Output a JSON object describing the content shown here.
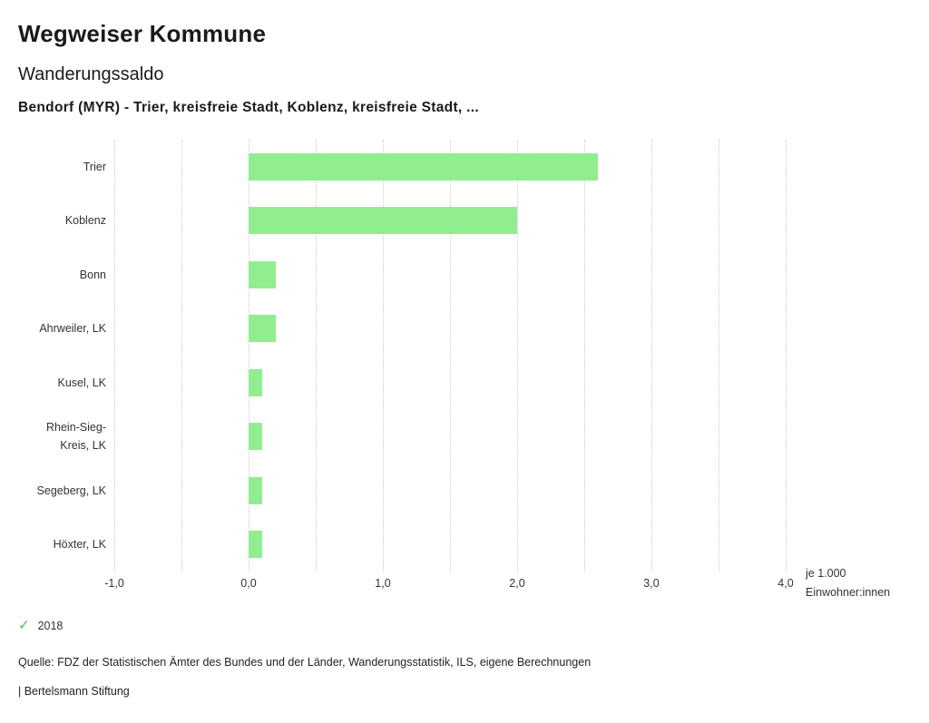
{
  "header": {
    "title": "Wegweiser Kommune",
    "subtitle": "Wanderungssaldo",
    "description": "Bendorf (MYR) - Trier, kreisfreie Stadt, Koblenz, kreisfreie Stadt, ..."
  },
  "chart_data": {
    "type": "bar",
    "orientation": "horizontal",
    "categories": [
      "Trier",
      "Koblenz",
      "Bonn",
      "Ahrweiler, LK",
      "Kusel, LK",
      "Rhein-Sieg-Kreis, LK",
      "Segeberg, LK",
      "Höxter, LK"
    ],
    "values": [
      2.6,
      2.0,
      0.2,
      0.2,
      0.1,
      0.1,
      0.1,
      0.1
    ],
    "series_name": "2018",
    "xlim": [
      -1.0,
      4.0
    ],
    "gridline_step": 0.5,
    "x_ticks": [
      -1,
      0,
      1,
      2,
      3,
      4
    ],
    "x_tick_labels": [
      "-1,0",
      "0,0",
      "1,0",
      "2,0",
      "3,0",
      "4,0"
    ],
    "bar_color": "#90ee90",
    "grid_on": true,
    "unit_label_line1": "je 1.000",
    "unit_label_line2": "Einwohner:innen"
  },
  "legend": {
    "check_icon": "✓",
    "check_color": "#82c982",
    "year": "2018"
  },
  "footer": {
    "source": "Quelle: FDZ der Statistischen Ämter des Bundes und der Länder, Wanderungsstatistik, ILS, eigene Berechnungen",
    "branding": "| Bertelsmann Stiftung"
  }
}
